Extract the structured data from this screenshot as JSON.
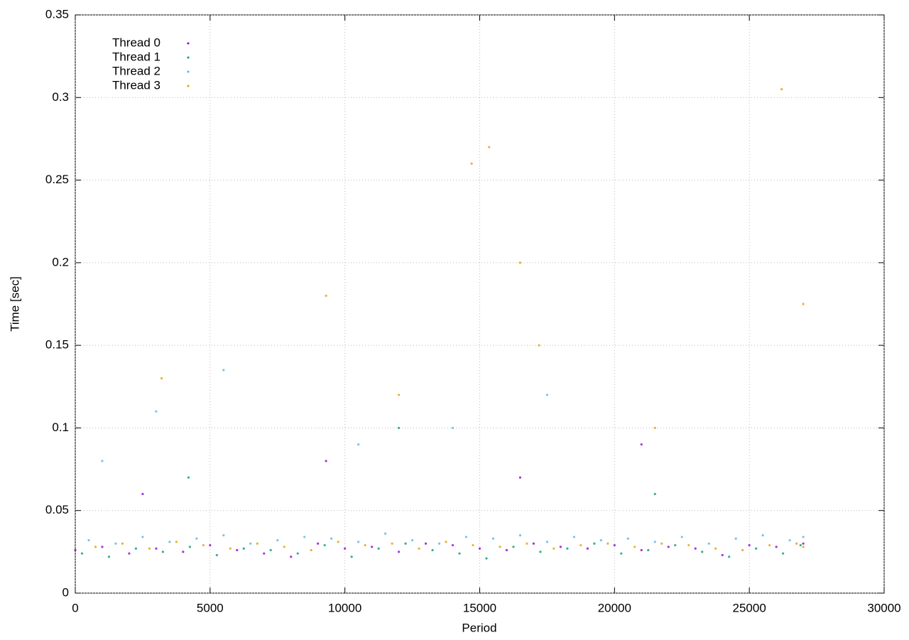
{
  "chart_data": {
    "type": "scatter",
    "x_label": "Period",
    "y_label": "Time [sec]",
    "xlim": [
      0,
      30000
    ],
    "ylim": [
      0,
      0.35
    ],
    "xticks": [
      0,
      5000,
      10000,
      15000,
      20000,
      25000,
      30000
    ],
    "yticks": [
      0,
      0.05,
      0.1,
      0.15,
      0.2,
      0.25,
      0.3,
      0.35
    ],
    "grid": true,
    "legend": "top-left",
    "series": [
      {
        "name": "Thread 0",
        "color": "#9400d3",
        "x": [
          0,
          1000,
          2000,
          3000,
          4000,
          5000,
          6000,
          7000,
          8000,
          9000,
          10000,
          11000,
          12000,
          13000,
          14000,
          15000,
          16000,
          17000,
          18000,
          19000,
          20000,
          21000,
          22000,
          23000,
          24000,
          25000,
          26000,
          27000,
          2500,
          9300,
          16500,
          21000
        ],
        "values": [
          0.026,
          0.028,
          0.024,
          0.027,
          0.025,
          0.029,
          0.026,
          0.024,
          0.022,
          0.03,
          0.027,
          0.028,
          0.025,
          0.03,
          0.029,
          0.027,
          0.026,
          0.03,
          0.028,
          0.027,
          0.029,
          0.026,
          0.028,
          0.027,
          0.023,
          0.029,
          0.028,
          0.03,
          0.06,
          0.08,
          0.07,
          0.09
        ]
      },
      {
        "name": "Thread 1",
        "color": "#009e73",
        "x": [
          250,
          1250,
          2250,
          3250,
          4250,
          5250,
          6250,
          7250,
          8250,
          9250,
          10250,
          11250,
          12250,
          13250,
          14250,
          15250,
          16250,
          17250,
          18250,
          19250,
          20250,
          21250,
          22250,
          23250,
          24250,
          25250,
          26250,
          26900,
          4200,
          12000,
          21500
        ],
        "values": [
          0.024,
          0.022,
          0.027,
          0.025,
          0.028,
          0.023,
          0.027,
          0.026,
          0.024,
          0.029,
          0.022,
          0.027,
          0.03,
          0.026,
          0.024,
          0.021,
          0.028,
          0.025,
          0.027,
          0.03,
          0.024,
          0.026,
          0.029,
          0.025,
          0.022,
          0.027,
          0.024,
          0.029,
          0.07,
          0.1,
          0.06
        ]
      },
      {
        "name": "Thread 2",
        "color": "#56b4e9",
        "x": [
          500,
          1500,
          2500,
          3500,
          4500,
          5500,
          6500,
          7500,
          8500,
          9500,
          10500,
          11500,
          12500,
          13500,
          14500,
          15500,
          16500,
          17500,
          18500,
          19500,
          20500,
          21500,
          22500,
          23500,
          24500,
          25500,
          26500,
          27000,
          1000,
          3000,
          5500,
          10500,
          14000,
          17500
        ],
        "values": [
          0.032,
          0.03,
          0.034,
          0.031,
          0.033,
          0.035,
          0.03,
          0.032,
          0.034,
          0.033,
          0.031,
          0.036,
          0.032,
          0.03,
          0.034,
          0.033,
          0.035,
          0.031,
          0.034,
          0.032,
          0.033,
          0.031,
          0.034,
          0.03,
          0.033,
          0.035,
          0.032,
          0.034,
          0.08,
          0.11,
          0.135,
          0.09,
          0.1,
          0.12
        ]
      },
      {
        "name": "Thread 3",
        "color": "#e69f00",
        "x": [
          750,
          1750,
          2750,
          3750,
          4750,
          5750,
          6750,
          7750,
          8750,
          9750,
          10750,
          11750,
          12750,
          13750,
          14750,
          15750,
          16750,
          17750,
          18750,
          19750,
          20750,
          21750,
          22750,
          23750,
          24750,
          25750,
          26750,
          27000,
          9300,
          14700,
          15350,
          16500,
          17200,
          26200,
          27000,
          3200,
          12000,
          21500
        ],
        "values": [
          0.028,
          0.03,
          0.027,
          0.031,
          0.029,
          0.027,
          0.03,
          0.028,
          0.026,
          0.031,
          0.029,
          0.03,
          0.027,
          0.031,
          0.029,
          0.028,
          0.03,
          0.027,
          0.029,
          0.03,
          0.028,
          0.03,
          0.029,
          0.027,
          0.026,
          0.029,
          0.03,
          0.028,
          0.18,
          0.26,
          0.27,
          0.2,
          0.15,
          0.305,
          0.175,
          0.13,
          0.12,
          0.1
        ]
      }
    ]
  }
}
